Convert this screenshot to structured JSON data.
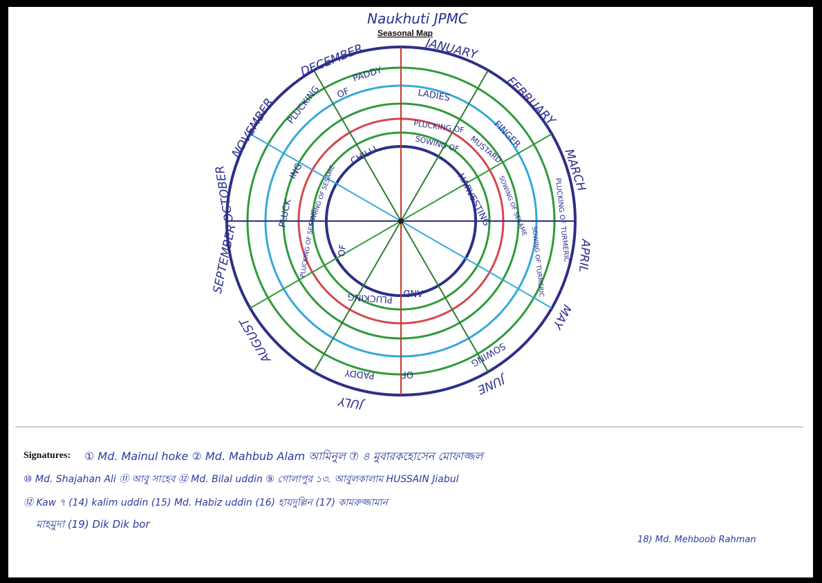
{
  "header": {
    "handwritten_title": "Naukhuti JPMC",
    "map_title": "Seasonal Map"
  },
  "months": [
    "JANUARY",
    "FEBRUARY",
    "MARCH",
    "APRIL",
    "MAY",
    "JUNE",
    "JULY",
    "AUGUST",
    "SEPTEMBER",
    "OCTOBER",
    "NOVEMBER",
    "DECEMBER"
  ],
  "ring_colors": {
    "outer": "#2d2f86",
    "green": "#2e9a3a",
    "cyan": "#35a8dc",
    "red": "#d4474d",
    "inner": "#2d2f86",
    "axis": "#c0392b"
  },
  "activities": {
    "paddy_plucking_upper": [
      "PLUCKING",
      "OF",
      "PADDY"
    ],
    "ladies_finger": [
      "LADIES",
      "FINGER"
    ],
    "mustard": [
      "PLUCKING OF",
      "SOWING OF",
      "MUSTARD"
    ],
    "chilli": [
      "SOWING",
      "AND",
      "HARVESTING",
      "OF",
      "CHILLI"
    ],
    "chilli_plucking": "PLUCKING",
    "sesame_left": [
      "PLUCKING OF SESAME",
      "SOWING OF SESAME"
    ],
    "sesame_right": [
      "SOWING OF SESAME",
      "PLUCKING OF SESAME"
    ],
    "turmeric": [
      "PLUCKING OF TURMERIC",
      "SOWING OF TURMERIC"
    ],
    "paddy_sowing": [
      "SOWING",
      "OF",
      "PADDY"
    ],
    "pluck": "PLUCK",
    "ing": "ING"
  },
  "signatures": {
    "label": "Signatures:",
    "lines": [
      "① Md. Mainul hoke ② Md. Mahbub Alam  আমিনুল  ⑦ ৪  মুবারকহোসেন  মোফাজ্জল",
      "⑩ Md. Shajahan Ali  ⑪ আবু সাহেব  ⑫ Md. Bilal uddin  ⑨ গোলাপুর  ১৩. আবুলকালাম  HUSSAIN  Jiabul",
      "⑫ Kaw ৭ (14) kalim uddin (15) Md. Habiz uddin   (16) হায়দুল্লিন  (17) কামরুজ্জামান",
      "মাহমুদা (19) Dik Dik bor",
      "18) Md. Mehboob Rahman"
    ]
  }
}
